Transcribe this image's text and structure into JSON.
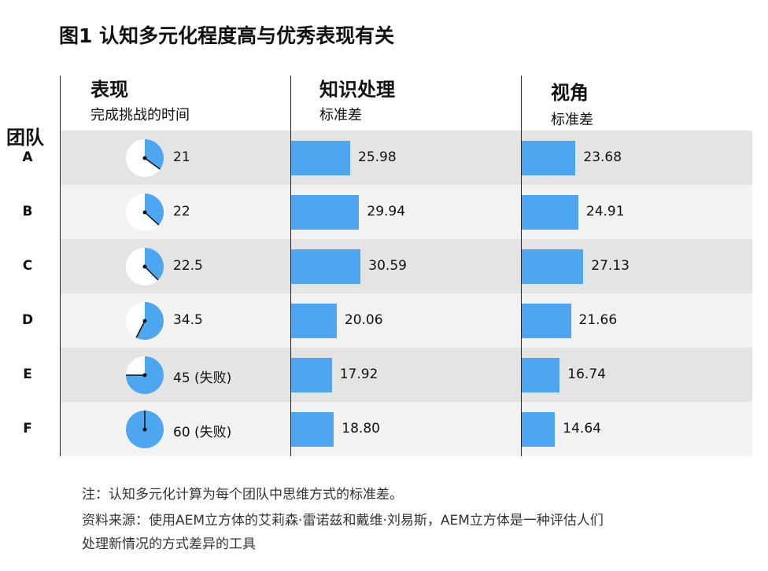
{
  "title": "图1  认知多元化程度高与优秀表现有关",
  "row_header": "团队",
  "columns": {
    "performance": {
      "title": "表现",
      "subtitle": "完成挑战的时间"
    },
    "knowledge": {
      "title": "知识处理",
      "subtitle": "标准差"
    },
    "perspective": {
      "title": "视角",
      "subtitle": "标准差"
    }
  },
  "chart_data": {
    "type": "table",
    "teams": [
      "A",
      "B",
      "C",
      "D",
      "E",
      "F"
    ],
    "performance_time": [
      21,
      22,
      22.5,
      34.5,
      45,
      60
    ],
    "performance_labels": [
      "21",
      "22",
      "22.5",
      "34.5",
      "45 (失败)",
      "60 (失败)"
    ],
    "knowledge_processing_sd": [
      25.98,
      29.94,
      30.59,
      20.06,
      17.92,
      18.8
    ],
    "knowledge_labels": [
      "25.98",
      "29.94",
      "30.59",
      "20.06",
      "17.92",
      "18.80"
    ],
    "perspective_sd": [
      23.68,
      24.91,
      27.13,
      21.66,
      16.74,
      14.64
    ],
    "perspective_labels": [
      "23.68",
      "24.91",
      "27.13",
      "21.66",
      "16.74",
      "14.64"
    ],
    "clock_max_minutes": 60
  },
  "notes": [
    "注：认知多元化计算为每个团队中思维方式的标准差。",
    "资料来源：使用AEM立方体的艾莉森·雷诺兹和戴维·刘易斯，AEM立方体是一种评估人们",
    "处理新情况的方式差异的工具"
  ],
  "colors": {
    "bar": "#4da6ef",
    "band_dark": "#e4e4e4",
    "band_light": "#f2f2f2"
  }
}
